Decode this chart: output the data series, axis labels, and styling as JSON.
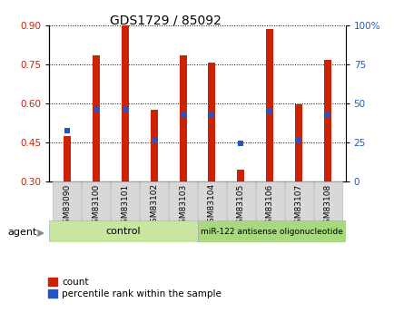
{
  "title": "GDS1729 / 85092",
  "samples": [
    "GSM83090",
    "GSM83100",
    "GSM83101",
    "GSM83102",
    "GSM83103",
    "GSM83104",
    "GSM83105",
    "GSM83106",
    "GSM83107",
    "GSM83108"
  ],
  "bar_tops": [
    0.475,
    0.785,
    0.905,
    0.575,
    0.785,
    0.755,
    0.345,
    0.885,
    0.595,
    0.765
  ],
  "bar_bottom": 0.3,
  "blue_values": [
    0.495,
    0.575,
    0.575,
    0.46,
    0.555,
    0.555,
    0.445,
    0.57,
    0.46,
    0.555
  ],
  "ylim_left": [
    0.3,
    0.9
  ],
  "ylim_right": [
    0,
    100
  ],
  "yticks_left": [
    0.3,
    0.45,
    0.6,
    0.75,
    0.9
  ],
  "yticks_right": [
    0,
    25,
    50,
    75,
    100
  ],
  "bar_color": "#cc2200",
  "blue_color": "#2255cc",
  "grid_color": "#000000",
  "bg_color": "#ffffff",
  "plot_bg": "#ffffff",
  "control_label": "control",
  "treatment_label": "miR-122 antisense oligonucleotide",
  "agent_label": "agent",
  "tick_color_left": "#cc2200",
  "tick_color_right": "#2255cc",
  "bar_width": 0.25,
  "blue_marker_size": 5,
  "legend_count_label": "count",
  "legend_pct_label": "percentile rank within the sample",
  "control_green": "#c8e6a0",
  "treatment_green": "#a8d880",
  "sample_box_gray": "#d8d8d8",
  "n_control": 5,
  "n_treatment": 5
}
